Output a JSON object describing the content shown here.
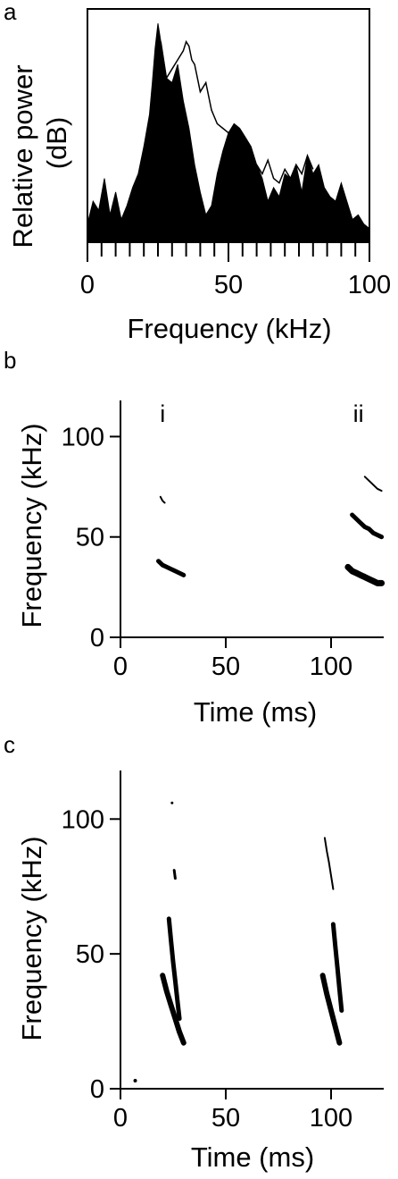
{
  "chart_data": [
    {
      "panel": "a",
      "type": "area",
      "xlabel": "Frequency (kHz)",
      "ylabel_lines": [
        "Relative power",
        "(dB)"
      ],
      "xlim": [
        0,
        100
      ],
      "xticks": [
        0,
        50,
        100
      ],
      "x_minor_step": 5,
      "series": [
        {
          "style": "filled",
          "color": "#000000",
          "x": [
            0,
            2,
            4,
            6,
            8,
            10,
            12,
            14,
            16,
            18,
            20,
            22,
            23,
            24,
            25,
            26,
            27,
            28,
            30,
            32,
            34,
            36,
            38,
            40,
            42,
            44,
            46,
            48,
            50,
            52,
            54,
            56,
            58,
            60,
            62,
            64,
            66,
            68,
            70,
            72,
            74,
            76,
            78,
            80,
            82,
            84,
            86,
            88,
            90,
            92,
            94,
            96,
            98,
            100
          ],
          "values": [
            8,
            18,
            14,
            28,
            12,
            22,
            10,
            16,
            24,
            30,
            42,
            56,
            70,
            85,
            96,
            88,
            80,
            72,
            70,
            78,
            62,
            50,
            34,
            22,
            12,
            16,
            30,
            40,
            48,
            52,
            50,
            46,
            42,
            34,
            28,
            18,
            24,
            20,
            30,
            28,
            34,
            22,
            38,
            30,
            34,
            24,
            20,
            18,
            26,
            18,
            10,
            12,
            8,
            6
          ]
        },
        {
          "style": "outline",
          "color": "#000000",
          "x": [
            26,
            28,
            30,
            32,
            34,
            35,
            36,
            37,
            38,
            40,
            42,
            44,
            46,
            48,
            50,
            52,
            54,
            56,
            58,
            60,
            62,
            64,
            66,
            68,
            70,
            72,
            74,
            76,
            78,
            80
          ],
          "values": [
            88,
            72,
            76,
            80,
            84,
            88,
            86,
            80,
            78,
            66,
            70,
            58,
            52,
            50,
            48,
            50,
            44,
            40,
            36,
            34,
            30,
            36,
            28,
            26,
            32,
            28,
            34,
            30,
            38,
            32
          ]
        }
      ]
    },
    {
      "panel": "b",
      "type": "scatter",
      "xlabel": "Time (ms)",
      "ylabel": "Frequency (kHz)",
      "xlim": [
        0,
        125
      ],
      "ylim": [
        0,
        118
      ],
      "xticks": [
        0,
        50,
        100
      ],
      "yticks": [
        0,
        50,
        100
      ],
      "annotations": [
        {
          "text": "i",
          "x": 20
        },
        {
          "text": "ii",
          "x": 113
        }
      ],
      "traces": [
        {
          "x": [
            18,
            20,
            22,
            24,
            26,
            28,
            30
          ],
          "values": [
            38,
            36,
            35,
            34,
            33,
            32,
            31
          ],
          "width": 5
        },
        {
          "x": [
            19,
            20,
            21
          ],
          "values": [
            70,
            68,
            67
          ],
          "width": 2
        },
        {
          "x": [
            108,
            110,
            112,
            114,
            116,
            118,
            120,
            122,
            124
          ],
          "values": [
            35,
            33,
            32,
            31,
            30,
            29,
            28,
            27,
            27
          ],
          "width": 7
        },
        {
          "x": [
            110,
            112,
            114,
            116,
            118,
            120,
            122,
            124
          ],
          "values": [
            61,
            59,
            57,
            55,
            54,
            52,
            51,
            50
          ],
          "width": 5
        },
        {
          "x": [
            116,
            118,
            120,
            122,
            124
          ],
          "values": [
            80,
            78,
            76,
            74,
            73
          ],
          "width": 2
        }
      ]
    },
    {
      "panel": "c",
      "type": "scatter",
      "xlabel": "Time (ms)",
      "ylabel": "Frequency (kHz)",
      "xlim": [
        0,
        125
      ],
      "ylim": [
        0,
        118
      ],
      "xticks": [
        0,
        50,
        100
      ],
      "yticks": [
        0,
        50,
        100
      ],
      "traces": [
        {
          "x": [
            20,
            22,
            24,
            26,
            28,
            30
          ],
          "values": [
            42,
            36,
            31,
            26,
            21,
            17
          ],
          "width": 6
        },
        {
          "x": [
            23,
            24,
            25,
            26,
            27,
            28
          ],
          "values": [
            63,
            55,
            47,
            40,
            33,
            26
          ],
          "width": 5
        },
        {
          "x": [
            25.5,
            26
          ],
          "values": [
            81,
            78
          ],
          "width": 3
        },
        {
          "x": [
            24.5
          ],
          "values": [
            106
          ],
          "width": 2
        },
        {
          "x": [
            96,
            98,
            100,
            102,
            104
          ],
          "values": [
            42,
            35,
            29,
            23,
            17
          ],
          "width": 6
        },
        {
          "x": [
            101,
            102,
            103,
            104,
            105
          ],
          "values": [
            61,
            53,
            45,
            37,
            29
          ],
          "width": 5
        },
        {
          "x": [
            97,
            98,
            99,
            100,
            101
          ],
          "values": [
            93,
            88,
            84,
            79,
            74
          ],
          "width": 2
        },
        {
          "x": [
            7
          ],
          "values": [
            3
          ],
          "width": 3
        }
      ]
    }
  ],
  "labels": {
    "a": "a",
    "b": "b",
    "c": "c"
  }
}
